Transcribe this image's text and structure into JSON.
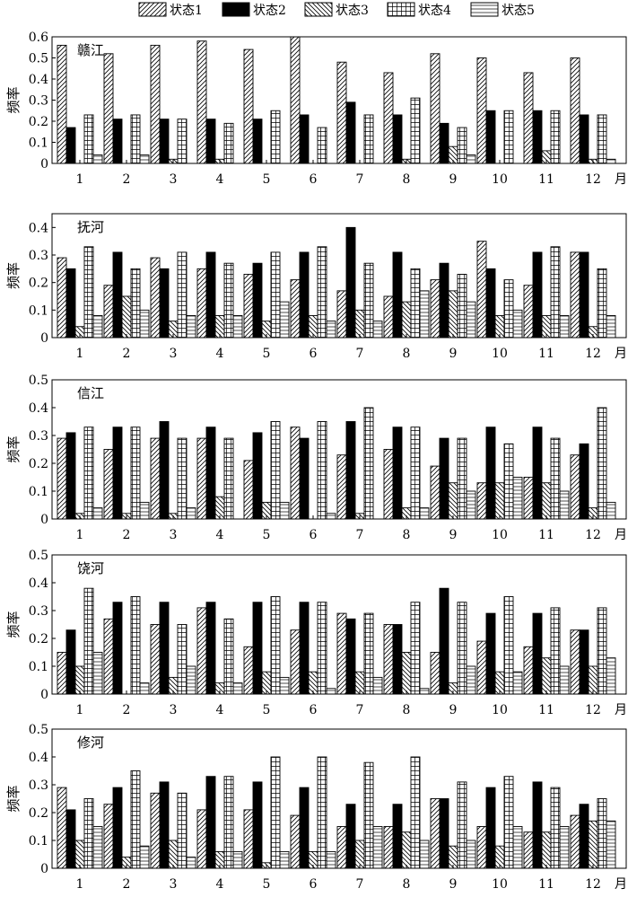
{
  "legend": [
    "状态1",
    "状态2",
    "状态3",
    "状态4",
    "状态5"
  ],
  "chart_data": [
    {
      "type": "bar",
      "title": "赣江",
      "ylabel": "频率",
      "xunit": "月",
      "categories": [
        "1",
        "2",
        "3",
        "4",
        "5",
        "6",
        "7",
        "8",
        "9",
        "10",
        "11",
        "12"
      ],
      "ylim": [
        0,
        0.6
      ],
      "yticks": [
        "0",
        "0.1",
        "0.2",
        "0.3",
        "0.4",
        "0.5",
        "0.6"
      ],
      "series": [
        {
          "name": "状态1",
          "values": [
            0.56,
            0.52,
            0.56,
            0.58,
            0.54,
            0.6,
            0.48,
            0.43,
            0.52,
            0.5,
            0.43,
            0.5
          ]
        },
        {
          "name": "状态2",
          "values": [
            0.17,
            0.21,
            0.21,
            0.21,
            0.21,
            0.23,
            0.29,
            0.23,
            0.19,
            0.25,
            0.25,
            0.23
          ]
        },
        {
          "name": "状态3",
          "values": [
            0.0,
            0.0,
            0.02,
            0.02,
            0.0,
            0.0,
            0.0,
            0.02,
            0.08,
            0.0,
            0.06,
            0.02
          ]
        },
        {
          "name": "状态4",
          "values": [
            0.23,
            0.23,
            0.21,
            0.19,
            0.25,
            0.17,
            0.23,
            0.31,
            0.17,
            0.25,
            0.25,
            0.23
          ]
        },
        {
          "name": "状态5",
          "values": [
            0.04,
            0.04,
            0.0,
            0.0,
            0.0,
            0.0,
            0.0,
            0.0,
            0.04,
            0.0,
            0.0,
            0.02
          ]
        }
      ]
    },
    {
      "type": "bar",
      "title": "抚河",
      "ylabel": "频率",
      "xunit": "月",
      "categories": [
        "1",
        "2",
        "3",
        "4",
        "5",
        "6",
        "7",
        "8",
        "9",
        "10",
        "11",
        "12"
      ],
      "ylim": [
        0,
        0.45
      ],
      "yticks": [
        "0",
        "0.1",
        "0.2",
        "0.3",
        "0.4"
      ],
      "series": [
        {
          "name": "状态1",
          "values": [
            0.29,
            0.19,
            0.29,
            0.25,
            0.23,
            0.21,
            0.17,
            0.15,
            0.21,
            0.35,
            0.19,
            0.31
          ]
        },
        {
          "name": "状态2",
          "values": [
            0.25,
            0.31,
            0.25,
            0.31,
            0.27,
            0.31,
            0.4,
            0.31,
            0.27,
            0.25,
            0.31,
            0.31
          ]
        },
        {
          "name": "状态3",
          "values": [
            0.04,
            0.15,
            0.06,
            0.08,
            0.06,
            0.08,
            0.1,
            0.13,
            0.17,
            0.08,
            0.08,
            0.04
          ]
        },
        {
          "name": "状态4",
          "values": [
            0.33,
            0.25,
            0.31,
            0.27,
            0.31,
            0.33,
            0.27,
            0.25,
            0.23,
            0.21,
            0.33,
            0.25
          ]
        },
        {
          "name": "状态5",
          "values": [
            0.08,
            0.1,
            0.08,
            0.08,
            0.13,
            0.06,
            0.06,
            0.17,
            0.13,
            0.1,
            0.08,
            0.08
          ]
        }
      ]
    },
    {
      "type": "bar",
      "title": "信江",
      "ylabel": "频率",
      "xunit": "月",
      "categories": [
        "1",
        "2",
        "3",
        "4",
        "5",
        "6",
        "7",
        "8",
        "9",
        "10",
        "11",
        "12"
      ],
      "ylim": [
        0,
        0.5
      ],
      "yticks": [
        "0",
        "0.1",
        "0.2",
        "0.3",
        "0.4",
        "0.5"
      ],
      "series": [
        {
          "name": "状态1",
          "values": [
            0.29,
            0.25,
            0.29,
            0.29,
            0.21,
            0.33,
            0.23,
            0.25,
            0.19,
            0.13,
            0.15,
            0.23
          ]
        },
        {
          "name": "状态2",
          "values": [
            0.31,
            0.33,
            0.35,
            0.33,
            0.31,
            0.29,
            0.35,
            0.33,
            0.29,
            0.33,
            0.33,
            0.27
          ]
        },
        {
          "name": "状态3",
          "values": [
            0.02,
            0.02,
            0.02,
            0.08,
            0.06,
            0.0,
            0.02,
            0.04,
            0.13,
            0.13,
            0.13,
            0.04
          ]
        },
        {
          "name": "状态4",
          "values": [
            0.33,
            0.33,
            0.29,
            0.29,
            0.35,
            0.35,
            0.4,
            0.33,
            0.29,
            0.27,
            0.29,
            0.4
          ]
        },
        {
          "name": "状态5",
          "values": [
            0.04,
            0.06,
            0.04,
            0.0,
            0.06,
            0.02,
            0.0,
            0.04,
            0.1,
            0.15,
            0.1,
            0.06
          ]
        }
      ]
    },
    {
      "type": "bar",
      "title": "饶河",
      "ylabel": "频率",
      "xunit": "月",
      "categories": [
        "1",
        "2",
        "3",
        "4",
        "5",
        "6",
        "7",
        "8",
        "9",
        "10",
        "11",
        "12"
      ],
      "ylim": [
        0,
        0.5
      ],
      "yticks": [
        "0",
        "0.1",
        "0.2",
        "0.3",
        "0.4",
        "0.5"
      ],
      "series": [
        {
          "name": "状态1",
          "values": [
            0.15,
            0.27,
            0.25,
            0.31,
            0.17,
            0.23,
            0.29,
            0.25,
            0.15,
            0.19,
            0.17,
            0.23
          ]
        },
        {
          "name": "状态2",
          "values": [
            0.23,
            0.33,
            0.33,
            0.33,
            0.33,
            0.33,
            0.27,
            0.25,
            0.38,
            0.29,
            0.29,
            0.23
          ]
        },
        {
          "name": "状态3",
          "values": [
            0.1,
            0.0,
            0.06,
            0.04,
            0.08,
            0.08,
            0.08,
            0.15,
            0.04,
            0.08,
            0.13,
            0.1
          ]
        },
        {
          "name": "状态4",
          "values": [
            0.38,
            0.35,
            0.25,
            0.27,
            0.35,
            0.33,
            0.29,
            0.33,
            0.33,
            0.35,
            0.31,
            0.31
          ]
        },
        {
          "name": "状态5",
          "values": [
            0.15,
            0.04,
            0.1,
            0.04,
            0.06,
            0.02,
            0.06,
            0.02,
            0.1,
            0.08,
            0.1,
            0.13
          ]
        }
      ]
    },
    {
      "type": "bar",
      "title": "修河",
      "ylabel": "频率",
      "xunit": "月",
      "categories": [
        "1",
        "2",
        "3",
        "4",
        "5",
        "6",
        "7",
        "8",
        "9",
        "10",
        "11",
        "12"
      ],
      "ylim": [
        0,
        0.5
      ],
      "yticks": [
        "0",
        "0.1",
        "0.2",
        "0.3",
        "0.4",
        "0.5"
      ],
      "series": [
        {
          "name": "状态1",
          "values": [
            0.29,
            0.23,
            0.27,
            0.21,
            0.21,
            0.19,
            0.15,
            0.15,
            0.25,
            0.15,
            0.13,
            0.19
          ]
        },
        {
          "name": "状态2",
          "values": [
            0.21,
            0.29,
            0.31,
            0.33,
            0.31,
            0.29,
            0.23,
            0.23,
            0.25,
            0.29,
            0.31,
            0.23
          ]
        },
        {
          "name": "状态3",
          "values": [
            0.1,
            0.04,
            0.1,
            0.06,
            0.02,
            0.06,
            0.1,
            0.13,
            0.08,
            0.08,
            0.13,
            0.17
          ]
        },
        {
          "name": "状态4",
          "values": [
            0.25,
            0.35,
            0.27,
            0.33,
            0.4,
            0.4,
            0.38,
            0.4,
            0.31,
            0.33,
            0.29,
            0.25
          ]
        },
        {
          "name": "状态5",
          "values": [
            0.15,
            0.08,
            0.04,
            0.06,
            0.06,
            0.06,
            0.15,
            0.1,
            0.1,
            0.15,
            0.15,
            0.17
          ]
        }
      ]
    }
  ]
}
